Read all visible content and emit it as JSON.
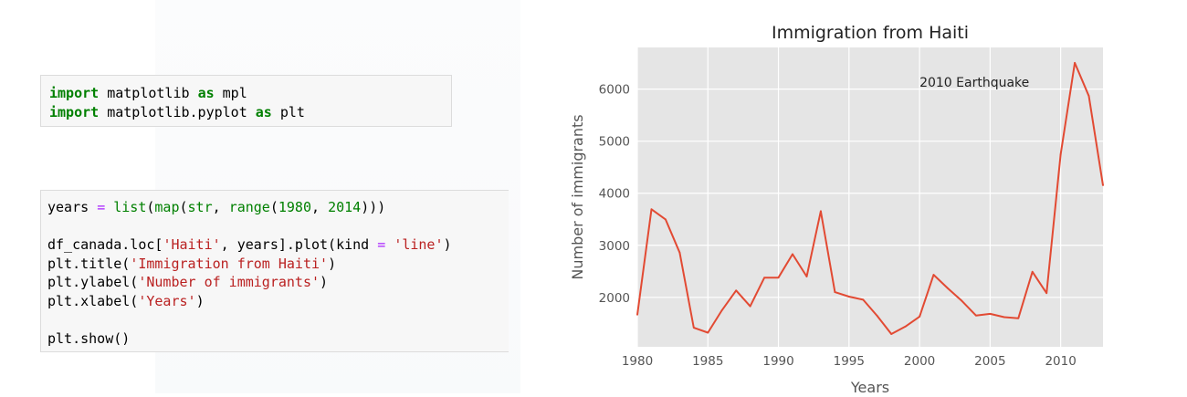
{
  "code_cells": [
    {
      "lines": [
        [
          {
            "t": "import",
            "c": "kw"
          },
          {
            "t": " matplotlib ",
            "c": ""
          },
          {
            "t": "as",
            "c": "kw"
          },
          {
            "t": " mpl",
            "c": ""
          }
        ],
        [
          {
            "t": "import",
            "c": "kw"
          },
          {
            "t": " matplotlib.pyplot ",
            "c": ""
          },
          {
            "t": "as",
            "c": "kw"
          },
          {
            "t": " plt",
            "c": ""
          }
        ]
      ]
    },
    {
      "lines": [
        [
          {
            "t": "years ",
            "c": ""
          },
          {
            "t": "=",
            "c": "op"
          },
          {
            "t": " ",
            "c": ""
          },
          {
            "t": "list",
            "c": "fn"
          },
          {
            "t": "(",
            "c": ""
          },
          {
            "t": "map",
            "c": "fn"
          },
          {
            "t": "(",
            "c": ""
          },
          {
            "t": "str",
            "c": "fn"
          },
          {
            "t": ", ",
            "c": ""
          },
          {
            "t": "range",
            "c": "fn"
          },
          {
            "t": "(",
            "c": ""
          },
          {
            "t": "1980",
            "c": "num"
          },
          {
            "t": ", ",
            "c": ""
          },
          {
            "t": "2014",
            "c": "num"
          },
          {
            "t": ")))",
            "c": ""
          }
        ],
        [],
        [
          {
            "t": "df_canada.loc[",
            "c": ""
          },
          {
            "t": "'Haiti'",
            "c": "str"
          },
          {
            "t": ", years].plot(kind ",
            "c": ""
          },
          {
            "t": "=",
            "c": "op"
          },
          {
            "t": " ",
            "c": ""
          },
          {
            "t": "'line'",
            "c": "str"
          },
          {
            "t": ")",
            "c": ""
          }
        ],
        [
          {
            "t": "plt.title(",
            "c": ""
          },
          {
            "t": "'Immigration from Haiti'",
            "c": "str"
          },
          {
            "t": ")",
            "c": ""
          }
        ],
        [
          {
            "t": "plt.ylabel(",
            "c": ""
          },
          {
            "t": "'Number of immigrants'",
            "c": "str"
          },
          {
            "t": ")",
            "c": ""
          }
        ],
        [
          {
            "t": "plt.xlabel(",
            "c": ""
          },
          {
            "t": "'Years'",
            "c": "str"
          },
          {
            "t": ")",
            "c": ""
          }
        ],
        [],
        [
          {
            "t": "plt.show()",
            "c": ""
          }
        ]
      ]
    }
  ],
  "chart_data": {
    "type": "line",
    "title": "Immigration from Haiti",
    "xlabel": "Years",
    "ylabel": "Number of immigrants",
    "x": [
      1980,
      1981,
      1982,
      1983,
      1984,
      1985,
      1986,
      1987,
      1988,
      1989,
      1990,
      1991,
      1992,
      1993,
      1994,
      1995,
      1996,
      1997,
      1998,
      1999,
      2000,
      2001,
      2002,
      2003,
      2004,
      2005,
      2006,
      2007,
      2008,
      2009,
      2010,
      2011,
      2012,
      2013
    ],
    "series": [
      {
        "values": [
          1666,
          3692,
          3498,
          2860,
          1418,
          1321,
          1753,
          2132,
          1829,
          2377,
          2379,
          2829,
          2399,
          3655,
          2100,
          2014,
          1955,
          1645,
          1295,
          1439,
          1631,
          2433,
          2174,
          1930,
          1652,
          1682,
          1619,
          1598,
          2491,
          2080,
          4744,
          6503,
          5868,
          4152
        ],
        "color": "#e24a33"
      }
    ],
    "xticks": [
      1980,
      1985,
      1990,
      1995,
      2000,
      2005,
      2010
    ],
    "yticks": [
      2000,
      3000,
      4000,
      5000,
      6000
    ],
    "xlim": [
      1980,
      2013
    ],
    "ylim": [
      1050,
      6800
    ],
    "grid": true,
    "annotations": [
      {
        "text": "2010 Earthquake",
        "x": 2000,
        "y": 6050
      }
    ],
    "style": {
      "background": "#e5e5e5",
      "grid": "#ffffff",
      "line": "#e24a33",
      "text": "#555555"
    }
  }
}
